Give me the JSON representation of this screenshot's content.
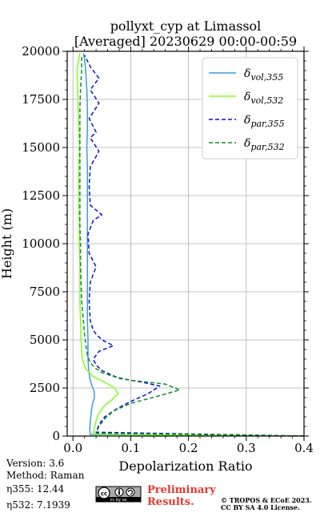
{
  "chart_data": {
    "type": "line",
    "title": "pollyxt_cyp at Limassol",
    "subtitle": "[Averaged] 20230629 00:00-00:59",
    "xlabel": "Depolarization Ratio",
    "ylabel": "Height (m)",
    "xlim": [
      -0.01,
      0.4
    ],
    "ylim": [
      0,
      20000
    ],
    "xticks": [
      0.0,
      0.1,
      0.2,
      0.3,
      0.4
    ],
    "xtick_labels": [
      "0.0",
      "0.1",
      "0.2",
      "0.3",
      "0.4"
    ],
    "yticks": [
      0,
      2500,
      5000,
      7500,
      10000,
      12500,
      15000,
      17500,
      20000
    ],
    "ytick_labels": [
      "0",
      "2500",
      "5000",
      "7500",
      "10000",
      "12500",
      "15000",
      "17500",
      "20000"
    ],
    "grid": true,
    "legend_position": "top-right",
    "series": [
      {
        "name": "vol,355",
        "legend_main": "δ",
        "legend_sub": "vol,355",
        "color": "#3c9ce0",
        "style": "solid",
        "points": [
          [
            0.4,
            0
          ],
          [
            0.03,
            80
          ],
          [
            0.029,
            300
          ],
          [
            0.03,
            800
          ],
          [
            0.032,
            1300
          ],
          [
            0.034,
            1700
          ],
          [
            0.037,
            2000
          ],
          [
            0.037,
            2300
          ],
          [
            0.033,
            2600
          ],
          [
            0.029,
            3000
          ],
          [
            0.027,
            3500
          ],
          [
            0.026,
            4000
          ],
          [
            0.026,
            5000
          ],
          [
            0.025,
            6000
          ],
          [
            0.025,
            7000
          ],
          [
            0.025,
            8000
          ],
          [
            0.025,
            9000
          ],
          [
            0.025,
            10000
          ],
          [
            0.025,
            11000
          ],
          [
            0.025,
            12000
          ],
          [
            0.025,
            13000
          ],
          [
            0.025,
            14000
          ],
          [
            0.024,
            15000
          ],
          [
            0.025,
            16000
          ],
          [
            0.025,
            17000
          ],
          [
            0.024,
            18000
          ],
          [
            0.022,
            19000
          ],
          [
            0.02,
            19600
          ],
          [
            0.018,
            19900
          ]
        ]
      },
      {
        "name": "vol,532",
        "legend_main": "δ",
        "legend_sub": "vol,532",
        "color": "#80ff20",
        "style": "solid",
        "points": [
          [
            0.4,
            0
          ],
          [
            0.035,
            100
          ],
          [
            0.037,
            400
          ],
          [
            0.04,
            800
          ],
          [
            0.045,
            1200
          ],
          [
            0.055,
            1600
          ],
          [
            0.068,
            1900
          ],
          [
            0.078,
            2200
          ],
          [
            0.072,
            2500
          ],
          [
            0.055,
            2800
          ],
          [
            0.035,
            3100
          ],
          [
            0.022,
            3500
          ],
          [
            0.016,
            4000
          ],
          [
            0.014,
            5000
          ],
          [
            0.013,
            6000
          ],
          [
            0.012,
            7000
          ],
          [
            0.012,
            8000
          ],
          [
            0.012,
            9000
          ],
          [
            0.011,
            10000
          ],
          [
            0.011,
            11000
          ],
          [
            0.01,
            12000
          ],
          [
            0.01,
            13000
          ],
          [
            0.01,
            14000
          ],
          [
            0.011,
            15000
          ],
          [
            0.01,
            16000
          ],
          [
            0.009,
            17000
          ],
          [
            0.008,
            18000
          ],
          [
            0.007,
            19000
          ],
          [
            0.01,
            19600
          ],
          [
            0.012,
            19900
          ]
        ]
      },
      {
        "name": "par,355",
        "legend_main": "δ",
        "legend_sub": "par,355",
        "color": "#0a14d2",
        "style": "dashed",
        "points": [
          [
            0.4,
            0
          ],
          [
            0.04,
            200
          ],
          [
            0.045,
            600
          ],
          [
            0.055,
            1000
          ],
          [
            0.075,
            1400
          ],
          [
            0.1,
            1800
          ],
          [
            0.13,
            2200
          ],
          [
            0.15,
            2600
          ],
          [
            0.12,
            2800
          ],
          [
            0.08,
            3000
          ],
          [
            0.065,
            3200
          ],
          [
            0.05,
            3400
          ],
          [
            0.04,
            3700
          ],
          [
            0.035,
            4000
          ],
          [
            0.045,
            4400
          ],
          [
            0.07,
            4700
          ],
          [
            0.05,
            5000
          ],
          [
            0.04,
            5300
          ],
          [
            0.035,
            5500
          ],
          [
            0.03,
            6000
          ],
          [
            0.028,
            7000
          ],
          [
            0.03,
            8000
          ],
          [
            0.04,
            8800
          ],
          [
            0.028,
            9500
          ],
          [
            0.026,
            10500
          ],
          [
            0.035,
            11200
          ],
          [
            0.05,
            11500
          ],
          [
            0.03,
            12000
          ],
          [
            0.028,
            13000
          ],
          [
            0.03,
            14000
          ],
          [
            0.045,
            14800
          ],
          [
            0.03,
            15500
          ],
          [
            0.04,
            15800
          ],
          [
            0.028,
            16500
          ],
          [
            0.045,
            17300
          ],
          [
            0.03,
            18000
          ],
          [
            0.045,
            18600
          ],
          [
            0.03,
            19200
          ],
          [
            0.02,
            19800
          ]
        ]
      },
      {
        "name": "par,532",
        "legend_main": "δ",
        "legend_sub": "par,532",
        "color": "#158a2c",
        "style": "dashed",
        "points": [
          [
            0.4,
            0
          ],
          [
            0.04,
            150
          ],
          [
            0.045,
            500
          ],
          [
            0.055,
            900
          ],
          [
            0.07,
            1300
          ],
          [
            0.1,
            1700
          ],
          [
            0.15,
            2100
          ],
          [
            0.185,
            2400
          ],
          [
            0.16,
            2700
          ],
          [
            0.1,
            2900
          ],
          [
            0.07,
            3100
          ],
          [
            0.05,
            3300
          ],
          [
            0.04,
            3500
          ],
          [
            0.03,
            3800
          ],
          [
            0.025,
            4200
          ],
          [
            0.022,
            4800
          ],
          [
            0.02,
            5300
          ],
          [
            0.018,
            6000
          ],
          [
            0.015,
            7000
          ],
          [
            0.014,
            8000
          ],
          [
            0.013,
            9000
          ],
          [
            0.013,
            10000
          ],
          [
            0.012,
            11000
          ],
          [
            0.012,
            12000
          ],
          [
            0.012,
            13000
          ],
          [
            0.012,
            14000
          ],
          [
            0.012,
            15000
          ],
          [
            0.012,
            16000
          ],
          [
            0.012,
            17000
          ],
          [
            0.013,
            18000
          ],
          [
            0.015,
            19000
          ],
          [
            0.015,
            19800
          ]
        ]
      }
    ]
  },
  "footer": {
    "version": "Version: 3.6",
    "method": "Method: Raman",
    "eta355": "η355:  12.44",
    "eta532": "η532: 7.1939",
    "license_badge": "cc by sa",
    "preliminary_line1": "Preliminary",
    "preliminary_line2": "Results.",
    "copyright_line1": "© TROPOS & ECoE 2023.",
    "copyright_line2": "CC BY SA 4.0 License."
  }
}
